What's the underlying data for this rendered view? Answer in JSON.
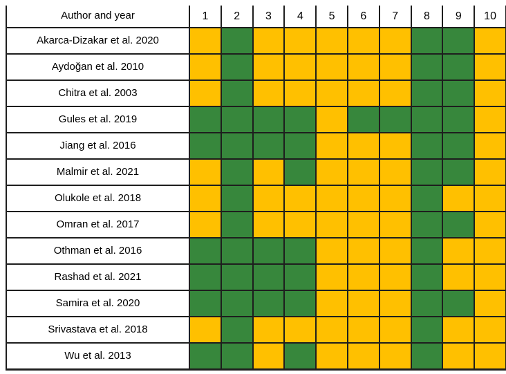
{
  "chart_data": {
    "type": "heatmap",
    "corner_label": "Author and year",
    "x_labels": [
      "1",
      "2",
      "3",
      "4",
      "5",
      "6",
      "7",
      "8",
      "9",
      "10"
    ],
    "y_labels": [
      "Akarca-Dizakar et al. 2020",
      "Aydoğan et al. 2010",
      "Chitra et al. 2003",
      "Gules et al. 2019",
      "Jiang et al. 2016",
      "Malmir et al. 2021",
      "Olukole et al. 2018",
      "Omran et al. 2017",
      "Othman et al. 2016",
      "Rashad et al. 2021",
      "Samira et al. 2020",
      "Srivastava et al. 2018",
      "Wu et al. 2013"
    ],
    "values": [
      [
        "yellow",
        "green",
        "yellow",
        "yellow",
        "yellow",
        "yellow",
        "yellow",
        "green",
        "green",
        "yellow"
      ],
      [
        "yellow",
        "green",
        "yellow",
        "yellow",
        "yellow",
        "yellow",
        "yellow",
        "green",
        "green",
        "yellow"
      ],
      [
        "yellow",
        "green",
        "yellow",
        "yellow",
        "yellow",
        "yellow",
        "yellow",
        "green",
        "green",
        "yellow"
      ],
      [
        "green",
        "green",
        "green",
        "green",
        "yellow",
        "green",
        "green",
        "green",
        "green",
        "yellow"
      ],
      [
        "green",
        "green",
        "green",
        "green",
        "yellow",
        "yellow",
        "yellow",
        "green",
        "green",
        "yellow"
      ],
      [
        "yellow",
        "green",
        "yellow",
        "green",
        "yellow",
        "yellow",
        "yellow",
        "green",
        "green",
        "yellow"
      ],
      [
        "yellow",
        "green",
        "yellow",
        "yellow",
        "yellow",
        "yellow",
        "yellow",
        "green",
        "yellow",
        "yellow"
      ],
      [
        "yellow",
        "green",
        "yellow",
        "yellow",
        "yellow",
        "yellow",
        "yellow",
        "green",
        "green",
        "yellow"
      ],
      [
        "green",
        "green",
        "green",
        "green",
        "yellow",
        "yellow",
        "yellow",
        "green",
        "yellow",
        "yellow"
      ],
      [
        "green",
        "green",
        "green",
        "green",
        "yellow",
        "yellow",
        "yellow",
        "green",
        "yellow",
        "yellow"
      ],
      [
        "green",
        "green",
        "green",
        "green",
        "yellow",
        "yellow",
        "yellow",
        "green",
        "green",
        "yellow"
      ],
      [
        "yellow",
        "green",
        "yellow",
        "yellow",
        "yellow",
        "yellow",
        "yellow",
        "green",
        "yellow",
        "yellow"
      ],
      [
        "green",
        "green",
        "yellow",
        "green",
        "yellow",
        "yellow",
        "yellow",
        "green",
        "yellow",
        "yellow"
      ]
    ],
    "color_map": {
      "green": "#37873C",
      "yellow": "#FFC000"
    },
    "grid": "on",
    "legend_position": "none"
  }
}
